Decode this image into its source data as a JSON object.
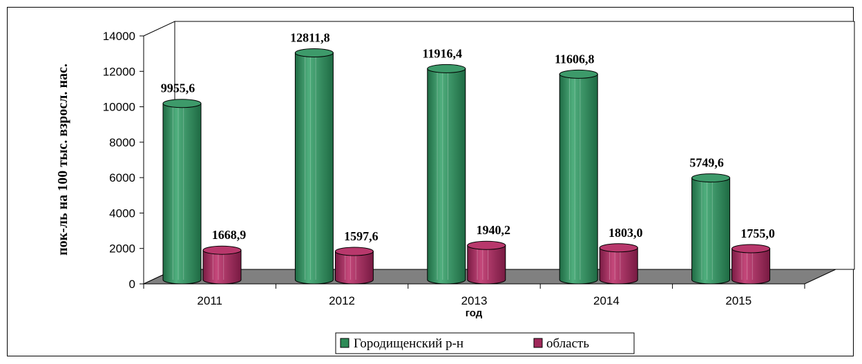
{
  "chart_data": {
    "type": "bar",
    "categories": [
      "2011",
      "2012",
      "2013",
      "2014",
      "2015"
    ],
    "series": [
      {
        "name": "Городищенский р-н",
        "color": "#2e8b57",
        "values": [
          9955.6,
          12811.8,
          11916.4,
          11606.8,
          5749.6
        ],
        "labels": [
          "9955,6",
          "12811,8",
          "11916,4",
          "11606,8",
          "5749,6"
        ]
      },
      {
        "name": "область",
        "color": "#a0285a",
        "values": [
          1668.9,
          1597.6,
          1940.2,
          1803.0,
          1755.0
        ],
        "labels": [
          "1668,9",
          "1597,6",
          "1940,2",
          "1803,0",
          "1755,0"
        ]
      }
    ],
    "yticks": [
      "0",
      "2000",
      "4000",
      "6000",
      "8000",
      "10000",
      "12000",
      "14000"
    ],
    "ylim": [
      0,
      14000
    ],
    "xlabel": "год",
    "ylabel": "пок-ль на 100 тыс. взросл. нас.",
    "style": "3d-cylinder",
    "legend_position": "bottom",
    "floor_color": "#808080"
  }
}
